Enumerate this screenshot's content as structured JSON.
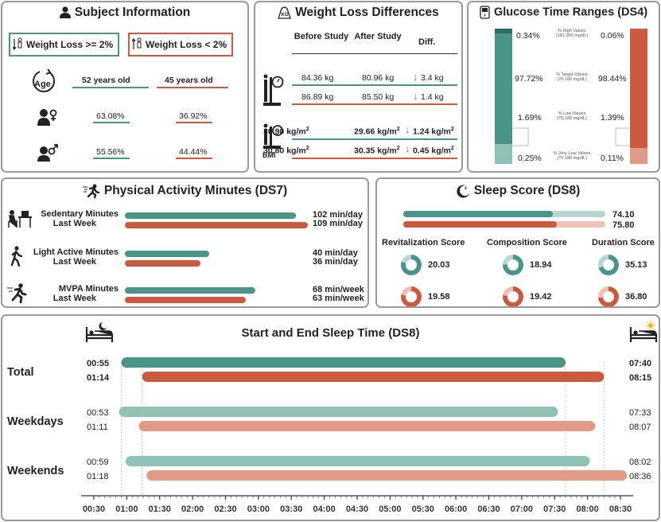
{
  "colors": {
    "teal": "#4a9488",
    "teal_light": "#8fc1b7",
    "teal_pale": "#b9d6d2",
    "orange": "#cc5a3e",
    "orange_light": "#e19a86",
    "orange_pale": "#f0c2b4"
  },
  "subject": {
    "title": "Subject Information",
    "legend_ge": "Weight Loss >= 2%",
    "legend_lt": "Weight Loss  <  2%",
    "age_icon_label": "Age",
    "age_ge": "52 years old",
    "age_lt": "45 years old",
    "female_ge": "63.08%",
    "female_lt": "36.92%",
    "male_ge": "55.56%",
    "male_lt": "44.44%"
  },
  "weight": {
    "title": "Weight Loss Differences",
    "kg_icon": "KG",
    "col_before": "Before Study",
    "col_after": "After Study",
    "col_diff": "Diff.",
    "kg_ge_before": "84.36 kg",
    "kg_ge_after": "80.96 kg",
    "kg_ge_diff": "3.4 kg",
    "kg_lt_before": "86.89 kg",
    "kg_lt_after": "85.50 kg",
    "kg_lt_diff": "1.4 kg",
    "bmi_label": "BMI",
    "bmi_ge_before": "30.90 kg/m",
    "bmi_ge_after": "29.66 kg/m",
    "bmi_ge_diff": "1.24 kg/m",
    "bmi_lt_before": "30.80 kg/m",
    "bmi_lt_after": "30.35 kg/m",
    "bmi_lt_diff": "0.45 kg/m",
    "sq": "2"
  },
  "glucose": {
    "title": "Glucose Time Ranges (DS4)",
    "high_ge": "0.34%",
    "high_lt": "0.06%",
    "high_lbl": "% High Values",
    "high_rng": "(181-250 mg/dL)",
    "target_ge": "97.72%",
    "target_lt": "98.44%",
    "target_lbl": "% Target Values",
    "target_rng": "(70-180 mg/dL)",
    "low_ge": "1.69%",
    "low_lt": "1.39%",
    "low_lbl": "% Low Values",
    "low_rng": "(70-180 mg/dL)",
    "vlow_ge": "0.25%",
    "vlow_lt": "0.11%",
    "vlow_lbl": "% Very Low Values",
    "vlow_rng": "(70-180 mg/dL)"
  },
  "activity": {
    "title": "Physical Activity Minutes (DS7)",
    "rows": [
      {
        "label": "Sedentary Minutes",
        "label2": "Last Week",
        "ge": 102,
        "lt": 109,
        "ge_txt": "102 min/day",
        "lt_txt": "109 min/day"
      },
      {
        "label": "Light Active Minutes",
        "label2": "Last Week",
        "ge": 40,
        "lt": 36,
        "ge_txt": "40 min/day",
        "lt_txt": "36 min/day"
      },
      {
        "label": "MVPA Minutes",
        "label2": "Last Week",
        "ge": 68,
        "lt": 63,
        "ge_txt": "68 min/week",
        "lt_txt": "63 min/week"
      }
    ]
  },
  "sleep_score": {
    "title": "Sleep Score (DS8)",
    "total_ge": 74.1,
    "total_lt": 75.8,
    "total_ge_txt": "74.10",
    "total_lt_txt": "75.80",
    "subs": [
      {
        "label": "Revitalization Score",
        "ge": 20.03,
        "lt": 19.58,
        "ge_txt": "20.03",
        "lt_txt": "19.58",
        "max": 25
      },
      {
        "label": "Composition Score",
        "ge": 18.94,
        "lt": 19.42,
        "ge_txt": "18.94",
        "lt_txt": "19.42",
        "max": 25
      },
      {
        "label": "Duration Score",
        "ge": 35.13,
        "lt": 36.8,
        "ge_txt": "35.13",
        "lt_txt": "36.80",
        "max": 50
      }
    ]
  },
  "chart_data": {
    "type": "bar",
    "title": "Start and End Sleep Time (DS8)",
    "x_range": [
      "00:30",
      "08:30"
    ],
    "ticks": [
      "00:30",
      "01:00",
      "01:30",
      "02:00",
      "02:30",
      "03:00",
      "03:30",
      "04:00",
      "04:30",
      "05:00",
      "05:30",
      "06:00",
      "06:30",
      "07:00",
      "07:30",
      "08:00",
      "08:30"
    ],
    "groups": [
      {
        "label": "Total",
        "bold": true,
        "ge": [
          "00:55",
          "07:40"
        ],
        "lt": [
          "01:14",
          "08:15"
        ]
      },
      {
        "label": "Weekdays",
        "bold": false,
        "ge": [
          "00:53",
          "07:33"
        ],
        "lt": [
          "01:11",
          "08:07"
        ]
      },
      {
        "label": "Weekends",
        "bold": false,
        "ge": [
          "00:59",
          "08:02"
        ],
        "lt": [
          "01:18",
          "08:36"
        ]
      }
    ]
  }
}
